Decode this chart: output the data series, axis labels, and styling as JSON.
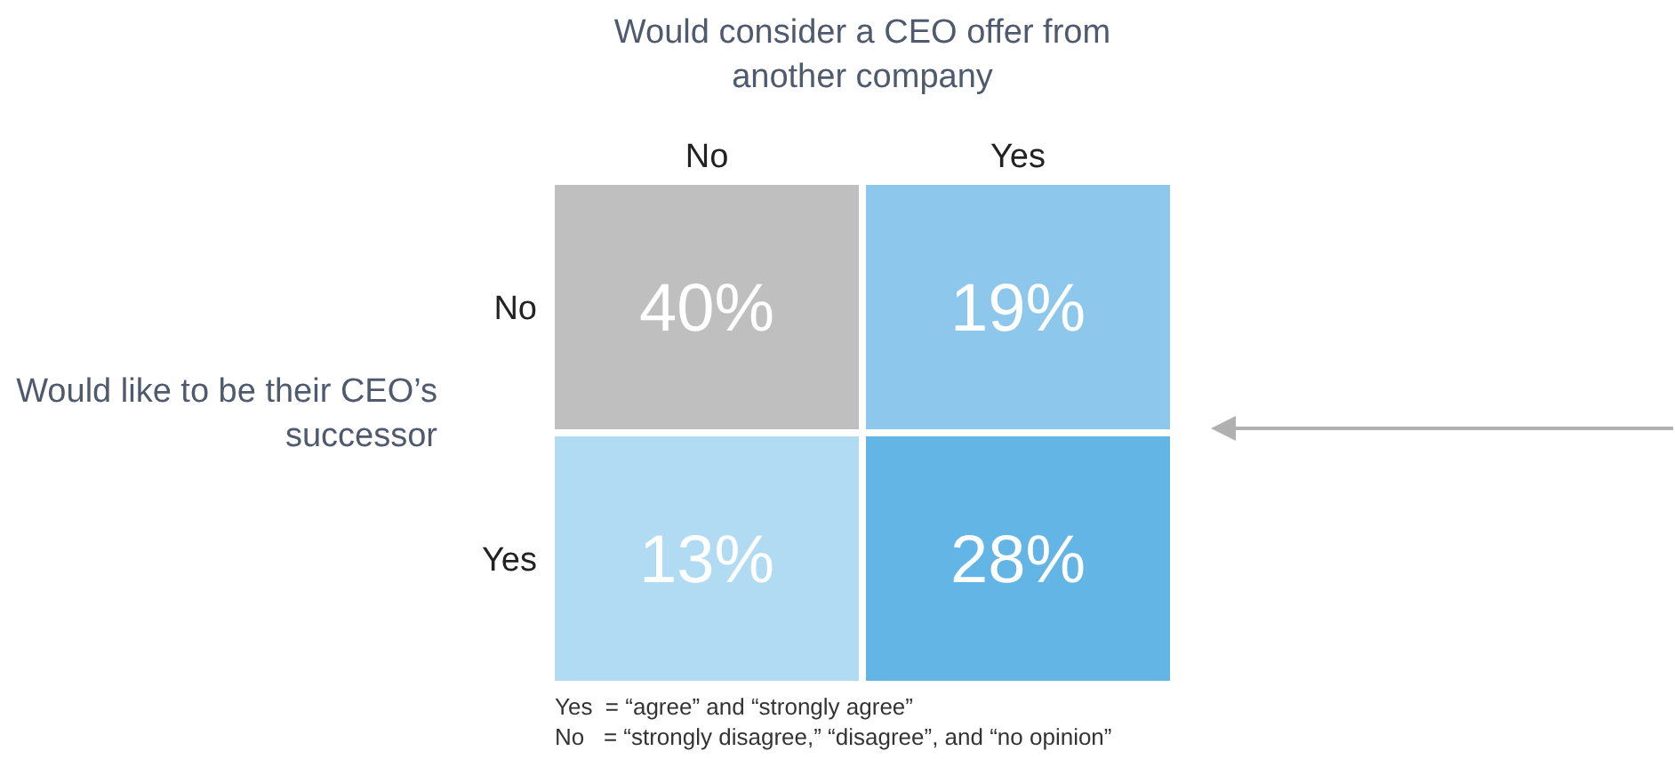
{
  "chart_data": {
    "type": "heatmap",
    "xlabel": "Would consider a CEO offer from another company",
    "ylabel": "Would like to be their CEO’s successor",
    "categories": [
      "No",
      "Yes"
    ],
    "y_categories": [
      "No",
      "Yes"
    ],
    "cells": [
      [
        40,
        19
      ],
      [
        13,
        28
      ]
    ],
    "cell_labels": [
      [
        "40%",
        "19%"
      ],
      [
        "13%",
        "28%"
      ]
    ],
    "colors": [
      "#bfbfbf",
      "#8dc8ec",
      "#b1dbf2",
      "#63b5e5"
    ],
    "annotations": [
      "Yes  = “agree” and “strongly agree”",
      "No   = “strongly disagree,” “disagree”, and “no opinion”"
    ]
  }
}
